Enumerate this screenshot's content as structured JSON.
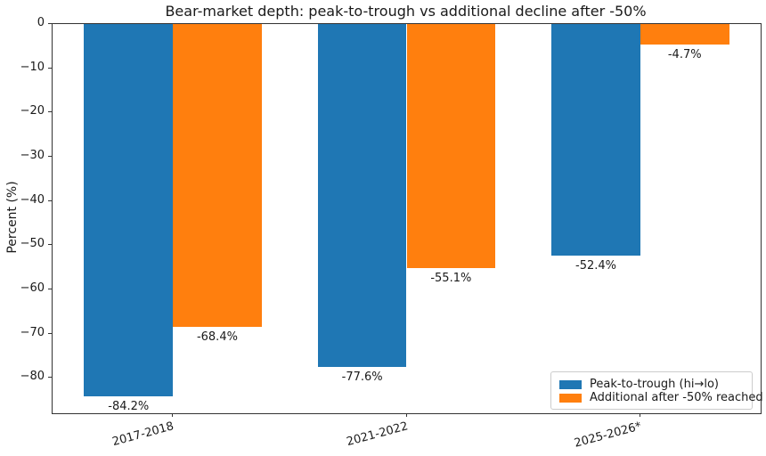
{
  "chart_data": {
    "type": "bar",
    "title": "Bear-market depth: peak-to-trough vs additional decline after -50%",
    "xlabel": "",
    "ylabel": "Percent (%)",
    "categories": [
      "2017-2018",
      "2021-2022",
      "2025-2026*"
    ],
    "group_positions": [
      0,
      1,
      2
    ],
    "series": [
      {
        "name": "Peak-to-trough (hi→lo)",
        "color": "#1f77b4",
        "values": [
          -84.2,
          -77.6,
          -52.4
        ],
        "labels": [
          "-84.2%",
          "-77.6%",
          "-52.4%"
        ]
      },
      {
        "name": "Additional after -50% reached",
        "color": "#ff7f0e",
        "values": [
          -68.4,
          -55.1,
          -4.7
        ],
        "labels": [
          "-68.4%",
          "-55.1%",
          "-4.7%"
        ]
      }
    ],
    "yticks": [
      0,
      -10,
      -20,
      -30,
      -40,
      -50,
      -60,
      -70,
      -80
    ],
    "ytick_labels": [
      "0",
      "−10",
      "−20",
      "−30",
      "−40",
      "−50",
      "−60",
      "−70",
      "−80"
    ],
    "ylim": [
      -88,
      0
    ],
    "xlim": [
      -0.515,
      2.515
    ],
    "bar_width": 0.38,
    "grid": false,
    "legend_position": "lower right"
  }
}
